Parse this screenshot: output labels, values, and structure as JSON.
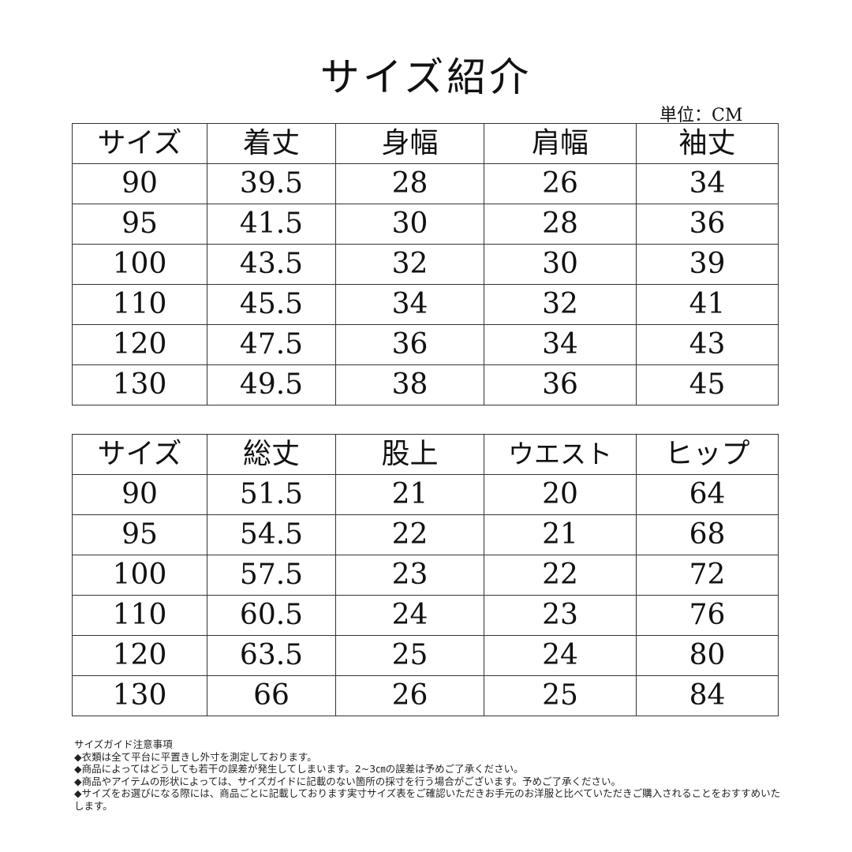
{
  "title": "サイズ紹介",
  "unit": "単位：CM",
  "table1": {
    "headers": [
      "サイズ",
      "着丈",
      "身幅",
      "肩幅",
      "袖丈"
    ],
    "rows": [
      [
        "90",
        "39.5",
        "28",
        "26",
        "34"
      ],
      [
        "95",
        "41.5",
        "30",
        "28",
        "36"
      ],
      [
        "100",
        "43.5",
        "32",
        "30",
        "39"
      ],
      [
        "110",
        "45.5",
        "34",
        "32",
        "41"
      ],
      [
        "120",
        "47.5",
        "36",
        "34",
        "43"
      ],
      [
        "130",
        "49.5",
        "38",
        "36",
        "45"
      ]
    ]
  },
  "table2": {
    "headers": [
      "サイズ",
      "総丈",
      "股上",
      "ウエスト",
      "ヒップ"
    ],
    "rows": [
      [
        "90",
        "51.5",
        "21",
        "20",
        "64"
      ],
      [
        "95",
        "54.5",
        "22",
        "21",
        "68"
      ],
      [
        "100",
        "57.5",
        "23",
        "22",
        "72"
      ],
      [
        "110",
        "60.5",
        "24",
        "23",
        "76"
      ],
      [
        "120",
        "63.5",
        "25",
        "24",
        "80"
      ],
      [
        "130",
        "66",
        "26",
        "25",
        "84"
      ]
    ]
  },
  "notes": [
    "サイズガイド注意事項",
    "◆衣類は全て平台に平置きし外寸を測定しております。",
    "◆商品によってはどうしても若干の誤差が発生してしまいます。2~3㎝の誤差は予めご了承ください。",
    "◆商品やアイテムの形状によっては、サイズガイドに記載のない箇所の採寸を行う場合がございます。予めご了承ください。",
    "◆サイズをお選びになる際には、商品ごとに記載しております実寸サイズ表をご確認いただきお手元のお洋服と比べていただきご購入されることをおすすめいたします。"
  ]
}
